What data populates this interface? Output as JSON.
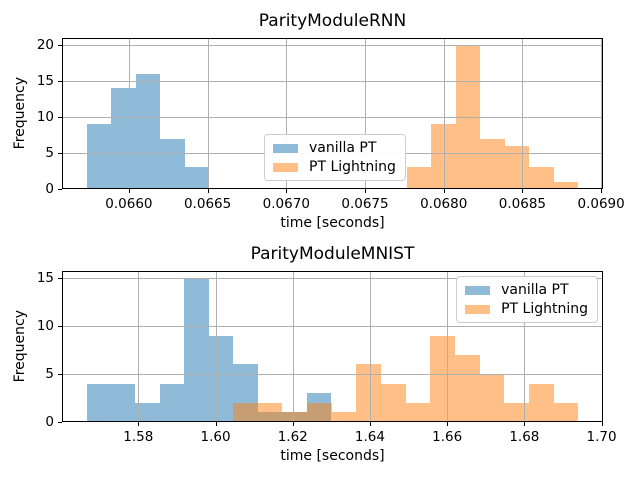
{
  "figure": {
    "background": "#ffffff",
    "grid_color": "#b0b0b0",
    "spine_color": "#000000",
    "text_color": "#000000"
  },
  "legend": {
    "items": [
      {
        "label": "vanilla PT",
        "color": "rgba(31,119,180,0.5)"
      },
      {
        "label": "PT Lightning",
        "color": "rgba(255,127,14,0.5)"
      }
    ]
  },
  "chart_data": [
    {
      "type": "bar",
      "subtype": "histogram",
      "title": "ParityModuleRNN",
      "xlabel": "time [seconds]",
      "ylabel": "Frequency",
      "grid": true,
      "legend_position": "center",
      "xlim": [
        0.065575,
        0.069012
      ],
      "ylim": [
        0,
        21
      ],
      "xticks": [
        0.066,
        0.0665,
        0.067,
        0.0675,
        0.068,
        0.0685,
        0.069
      ],
      "xtick_labels": [
        "0.0660",
        "0.0665",
        "0.0670",
        "0.0675",
        "0.0680",
        "0.0685",
        "0.0690"
      ],
      "yticks": [
        0,
        5,
        10,
        15,
        20
      ],
      "ytick_labels": [
        "0",
        "5",
        "10",
        "15",
        "20"
      ],
      "series": [
        {
          "name": "vanilla PT",
          "color": "rgba(31,119,180,0.5)",
          "bin_start": 0.065731,
          "bin_width": 0.000156,
          "counts": [
            9,
            14,
            16,
            7,
            3
          ]
        },
        {
          "name": "PT Lightning",
          "color": "rgba(255,127,14,0.5)",
          "bin_start": 0.067764,
          "bin_width": 0.000156,
          "counts": [
            3,
            9,
            20,
            7,
            6,
            3,
            1
          ]
        }
      ]
    },
    {
      "type": "bar",
      "subtype": "histogram",
      "title": "ParityModuleMNIST",
      "xlabel": "time [seconds]",
      "ylabel": "Frequency",
      "grid": true,
      "legend_position": "upper right",
      "xlim": [
        1.56023,
        1.70037
      ],
      "ylim": [
        0,
        15.75
      ],
      "xticks": [
        1.58,
        1.6,
        1.62,
        1.64,
        1.66,
        1.68,
        1.7
      ],
      "xtick_labels": [
        "1.58",
        "1.60",
        "1.62",
        "1.64",
        "1.66",
        "1.68",
        "1.70"
      ],
      "yticks": [
        0,
        5,
        10,
        15
      ],
      "ytick_labels": [
        "0",
        "5",
        "10",
        "15"
      ],
      "series": [
        {
          "name": "vanilla PT",
          "color": "rgba(31,119,180,0.5)",
          "bin_start": 1.5666,
          "bin_width": 0.00633,
          "counts": [
            4,
            4,
            2,
            4,
            15,
            9,
            6,
            1,
            1,
            3
          ]
        },
        {
          "name": "PT Lightning",
          "color": "rgba(255,127,14,0.5)",
          "bin_start": 1.6045,
          "bin_width": 0.00639,
          "counts": [
            2,
            2,
            1,
            2,
            1,
            6,
            4,
            2,
            9,
            7,
            5,
            2,
            4,
            2
          ]
        }
      ]
    }
  ]
}
